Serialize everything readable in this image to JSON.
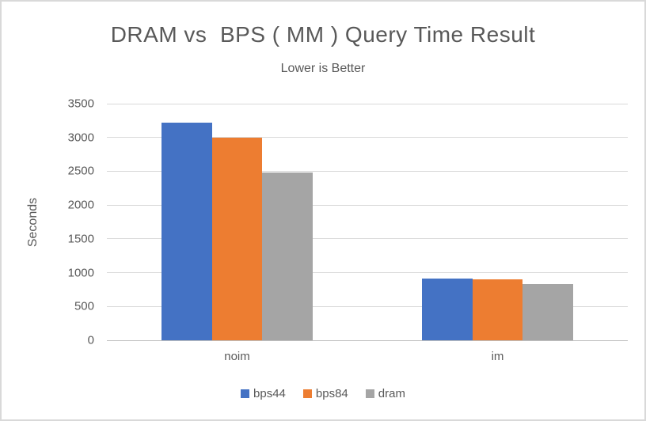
{
  "window": {
    "background": "#ffffff",
    "frame_border_color": "#d9d9d9"
  },
  "chart_data": {
    "type": "bar",
    "title": "DRAM vs  BPS ( MM ) Query Time Result",
    "subtitle": "Lower is Better",
    "xlabel": "",
    "ylabel": "Seconds",
    "categories": [
      "noim",
      "im"
    ],
    "series": [
      {
        "name": "bps44",
        "color": "#4472C4",
        "values": [
          3225,
          915
        ]
      },
      {
        "name": "bps84",
        "color": "#ED7D31",
        "values": [
          3000,
          905
        ]
      },
      {
        "name": "dram",
        "color": "#A5A5A5",
        "values": [
          2480,
          835
        ]
      }
    ],
    "ylim": [
      0,
      3500
    ],
    "yticks": [
      0,
      500,
      1000,
      1500,
      2000,
      2500,
      3000,
      3500
    ],
    "grid": true,
    "legend_position": "bottom",
    "styles": {
      "text_color": "#595959",
      "gridline_color": "#d9d9d9",
      "axis_line_color": "#bfbfbf"
    }
  }
}
